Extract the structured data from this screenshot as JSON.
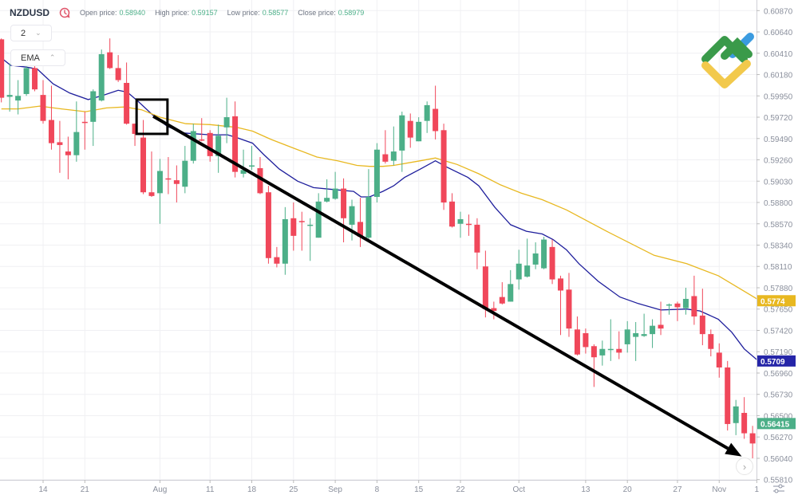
{
  "header": {
    "symbol": "NZDUSD",
    "open_label": "Open price:",
    "open_value": "0.58940",
    "high_label": "High price:",
    "high_value": "0.59157",
    "low_label": "Low price:",
    "low_value": "0.58577",
    "close_label": "Close price:",
    "close_value": "0.58979",
    "clock_icon": "history-clock-icon"
  },
  "controls": {
    "interval_value": "2",
    "indicator_label": "EMA"
  },
  "colors": {
    "up": "#4caf88",
    "down": "#f0475a",
    "ema_fast": "#1e1e9c",
    "ema_slow": "#e8b820",
    "grid": "#f0f0f3",
    "annotation": "#000000"
  },
  "chart_data": {
    "type": "candlestick",
    "title": "NZDUSD",
    "grid": true,
    "ylim": [
      0.5581,
      0.6087
    ],
    "y_ticks": [
      "0.60870",
      "0.60640",
      "0.60410",
      "0.60180",
      "0.59950",
      "0.59720",
      "0.59490",
      "0.59260",
      "0.59030",
      "0.58800",
      "0.58570",
      "0.58340",
      "0.58110",
      "0.57880",
      "0.57650",
      "0.57420",
      "0.57190",
      "0.56960",
      "0.56730",
      "0.56500",
      "0.56270",
      "0.56040",
      "0.55810"
    ],
    "x_ticks": [
      {
        "label": "14",
        "index": 5
      },
      {
        "label": "21",
        "index": 10
      },
      {
        "label": "Aug",
        "index": 19
      },
      {
        "label": "11",
        "index": 25
      },
      {
        "label": "18",
        "index": 30
      },
      {
        "label": "25",
        "index": 35
      },
      {
        "label": "Sep",
        "index": 40
      },
      {
        "label": "8",
        "index": 45
      },
      {
        "label": "15",
        "index": 50
      },
      {
        "label": "22",
        "index": 55
      },
      {
        "label": "Oct",
        "index": 62
      },
      {
        "label": "13",
        "index": 70
      },
      {
        "label": "20",
        "index": 75
      },
      {
        "label": "27",
        "index": 81
      },
      {
        "label": "Nov",
        "index": 86
      },
      {
        "label": "1",
        "index": 90.5
      }
    ],
    "candles_ohlc": [
      [
        0.6056,
        0.6057,
        0.5988,
        0.5993
      ],
      [
        0.5994,
        0.603,
        0.5978,
        0.5996
      ],
      [
        0.599,
        0.6012,
        0.5975,
        0.5995
      ],
      [
        0.5997,
        0.6027,
        0.5995,
        0.6025
      ],
      [
        0.6025,
        0.6027,
        0.6,
        0.6002
      ],
      [
        0.5996,
        0.6012,
        0.5965,
        0.5968
      ],
      [
        0.5969,
        0.6006,
        0.5937,
        0.5944
      ],
      [
        0.5945,
        0.5968,
        0.5912,
        0.5942
      ],
      [
        0.5935,
        0.5951,
        0.5905,
        0.5931
      ],
      [
        0.5931,
        0.5989,
        0.5924,
        0.5956
      ],
      [
        0.5967,
        0.5978,
        0.5937,
        0.5966
      ],
      [
        0.5967,
        0.6002,
        0.5941,
        0.6
      ],
      [
        0.599,
        0.6045,
        0.5989,
        0.604
      ],
      [
        0.6042,
        0.6057,
        0.6024,
        0.6025
      ],
      [
        0.6025,
        0.6039,
        0.601,
        0.6012
      ],
      [
        0.6009,
        0.6031,
        0.5964,
        0.5965
      ],
      [
        0.5965,
        0.5965,
        0.5941,
        0.5954
      ],
      [
        0.595,
        0.5969,
        0.5889,
        0.5891
      ],
      [
        0.5891,
        0.5935,
        0.5886,
        0.5887
      ],
      [
        0.589,
        0.5927,
        0.5857,
        0.5914
      ],
      [
        0.5906,
        0.5929,
        0.5889,
        0.5905
      ],
      [
        0.5904,
        0.592,
        0.588,
        0.59
      ],
      [
        0.5897,
        0.5941,
        0.589,
        0.5925
      ],
      [
        0.5925,
        0.5965,
        0.5922,
        0.5957
      ],
      [
        0.5948,
        0.5971,
        0.5946,
        0.5947
      ],
      [
        0.5955,
        0.5958,
        0.5924,
        0.593
      ],
      [
        0.593,
        0.5964,
        0.5912,
        0.5952
      ],
      [
        0.5961,
        0.5993,
        0.5944,
        0.5972
      ],
      [
        0.5973,
        0.5989,
        0.5907,
        0.5913
      ],
      [
        0.5911,
        0.5937,
        0.5907,
        0.5915
      ],
      [
        0.5919,
        0.5941,
        0.5915,
        0.592
      ],
      [
        0.5917,
        0.5929,
        0.5889,
        0.589
      ],
      [
        0.5891,
        0.5898,
        0.5814,
        0.582
      ],
      [
        0.5821,
        0.5832,
        0.581,
        0.5814
      ],
      [
        0.5814,
        0.5875,
        0.5802,
        0.5862
      ],
      [
        0.5863,
        0.588,
        0.5828,
        0.5844
      ],
      [
        0.586,
        0.587,
        0.5828,
        0.5859
      ],
      [
        0.5855,
        0.5863,
        0.5817,
        0.5856
      ],
      [
        0.5842,
        0.589,
        0.5842,
        0.5881
      ],
      [
        0.5881,
        0.5905,
        0.588,
        0.5885
      ],
      [
        0.5884,
        0.5913,
        0.5883,
        0.5895
      ],
      [
        0.5895,
        0.5906,
        0.5837,
        0.5863
      ],
      [
        0.5856,
        0.5883,
        0.5839,
        0.5876
      ],
      [
        0.5859,
        0.5885,
        0.5832,
        0.5843
      ],
      [
        0.5842,
        0.5916,
        0.584,
        0.5886
      ],
      [
        0.5886,
        0.5944,
        0.588,
        0.5937
      ],
      [
        0.5932,
        0.5958,
        0.5922,
        0.5924
      ],
      [
        0.5925,
        0.5962,
        0.592,
        0.5935
      ],
      [
        0.5936,
        0.5978,
        0.5913,
        0.5974
      ],
      [
        0.5968,
        0.5976,
        0.5939,
        0.595
      ],
      [
        0.5946,
        0.5972,
        0.5946,
        0.5967
      ],
      [
        0.5968,
        0.5989,
        0.5955,
        0.5985
      ],
      [
        0.5981,
        0.6006,
        0.5948,
        0.5957
      ],
      [
        0.5958,
        0.5965,
        0.5872,
        0.588
      ],
      [
        0.5881,
        0.589,
        0.5853,
        0.5854
      ],
      [
        0.5857,
        0.587,
        0.5842,
        0.5862
      ],
      [
        0.5857,
        0.5867,
        0.5844,
        0.5856
      ],
      [
        0.5856,
        0.5863,
        0.5808,
        0.5826
      ],
      [
        0.5811,
        0.5828,
        0.5756,
        0.5765
      ],
      [
        0.5766,
        0.5773,
        0.5754,
        0.5763
      ],
      [
        0.5778,
        0.5794,
        0.577,
        0.5771
      ],
      [
        0.5773,
        0.5807,
        0.5773,
        0.5792
      ],
      [
        0.5797,
        0.5829,
        0.5786,
        0.5814
      ],
      [
        0.58,
        0.5841,
        0.5799,
        0.5812
      ],
      [
        0.5813,
        0.5837,
        0.5808,
        0.5825
      ],
      [
        0.5809,
        0.5843,
        0.5808,
        0.584
      ],
      [
        0.5832,
        0.584,
        0.5792,
        0.5797
      ],
      [
        0.5798,
        0.5801,
        0.5737,
        0.5785
      ],
      [
        0.5786,
        0.5804,
        0.5735,
        0.5744
      ],
      [
        0.5743,
        0.5757,
        0.5715,
        0.5716
      ],
      [
        0.5739,
        0.5744,
        0.5717,
        0.5724
      ],
      [
        0.5725,
        0.5727,
        0.5681,
        0.5713
      ],
      [
        0.5715,
        0.5731,
        0.5704,
        0.5722
      ],
      [
        0.5721,
        0.5754,
        0.5709,
        0.5722
      ],
      [
        0.5722,
        0.5741,
        0.5711,
        0.5718
      ],
      [
        0.5727,
        0.5752,
        0.5718,
        0.5743
      ],
      [
        0.5735,
        0.5751,
        0.5709,
        0.5739
      ],
      [
        0.5736,
        0.576,
        0.5735,
        0.5738
      ],
      [
        0.5738,
        0.5754,
        0.5723,
        0.5747
      ],
      [
        0.5748,
        0.5773,
        0.5737,
        0.5744
      ],
      [
        0.5769,
        0.5771,
        0.5759,
        0.577
      ],
      [
        0.5771,
        0.5773,
        0.5752,
        0.5767
      ],
      [
        0.5766,
        0.5788,
        0.5759,
        0.5776
      ],
      [
        0.5779,
        0.5801,
        0.5748,
        0.5757
      ],
      [
        0.5758,
        0.5787,
        0.5726,
        0.5738
      ],
      [
        0.5738,
        0.5743,
        0.5714,
        0.5722
      ],
      [
        0.5718,
        0.5728,
        0.5691,
        0.5702
      ],
      [
        0.5702,
        0.5709,
        0.5634,
        0.5641
      ],
      [
        0.5642,
        0.5667,
        0.5629,
        0.566
      ],
      [
        0.5653,
        0.567,
        0.5625,
        0.5631
      ],
      [
        0.5631,
        0.5639,
        0.5604,
        0.562
      ]
    ],
    "series": [
      {
        "kind": "ema-fast",
        "points": [
          [
            0,
            0.6036
          ],
          [
            1.1,
            0.6028
          ],
          [
            3.0,
            0.6026
          ],
          [
            4.3,
            0.6024
          ],
          [
            6.2,
            0.6008
          ],
          [
            8.2,
            0.5998
          ],
          [
            10.4,
            0.5991
          ],
          [
            12.0,
            0.5995
          ],
          [
            14.0,
            0.6001
          ],
          [
            15.1,
            0.5999
          ],
          [
            16.4,
            0.5989
          ],
          [
            18.3,
            0.5973
          ],
          [
            19.9,
            0.5962
          ],
          [
            21.8,
            0.5955
          ],
          [
            25.0,
            0.5953
          ],
          [
            27.1,
            0.5953
          ],
          [
            28.2,
            0.595
          ],
          [
            30.1,
            0.5944
          ],
          [
            31.4,
            0.5932
          ],
          [
            33.3,
            0.5916
          ],
          [
            35.5,
            0.5903
          ],
          [
            37.4,
            0.5896
          ],
          [
            39.7,
            0.5894
          ],
          [
            42.2,
            0.5892
          ],
          [
            43.1,
            0.5886
          ],
          [
            44.1,
            0.5886
          ],
          [
            45.7,
            0.5892
          ],
          [
            47.0,
            0.5898
          ],
          [
            48.3,
            0.5907
          ],
          [
            50.2,
            0.5916
          ],
          [
            52.0,
            0.5925
          ],
          [
            53.4,
            0.5918
          ],
          [
            55.9,
            0.5907
          ],
          [
            57.2,
            0.5898
          ],
          [
            59.1,
            0.5875
          ],
          [
            61.0,
            0.5856
          ],
          [
            62.9,
            0.5849
          ],
          [
            64.8,
            0.5846
          ],
          [
            66.1,
            0.584
          ],
          [
            67.7,
            0.5829
          ],
          [
            69.2,
            0.5814
          ],
          [
            71.5,
            0.5795
          ],
          [
            74.1,
            0.5778
          ],
          [
            76.3,
            0.5771
          ],
          [
            79.0,
            0.5764
          ],
          [
            82.1,
            0.5765
          ],
          [
            83.7,
            0.5763
          ],
          [
            85.9,
            0.5754
          ],
          [
            87.5,
            0.574
          ],
          [
            89.0,
            0.5722
          ],
          [
            90.7,
            0.5709
          ]
        ]
      },
      {
        "kind": "ema-slow",
        "points": [
          [
            0,
            0.5981
          ],
          [
            2.0,
            0.5981
          ],
          [
            4.6,
            0.5984
          ],
          [
            7.2,
            0.5981
          ],
          [
            10.1,
            0.5978
          ],
          [
            12.6,
            0.5982
          ],
          [
            14.8,
            0.5983
          ],
          [
            16.8,
            0.598
          ],
          [
            19.0,
            0.5972
          ],
          [
            22.1,
            0.5965
          ],
          [
            25.0,
            0.5964
          ],
          [
            28.2,
            0.5961
          ],
          [
            30.1,
            0.5957
          ],
          [
            32.3,
            0.5948
          ],
          [
            35.2,
            0.5938
          ],
          [
            37.8,
            0.5929
          ],
          [
            40.3,
            0.5925
          ],
          [
            42.6,
            0.592
          ],
          [
            44.1,
            0.5919
          ],
          [
            45.7,
            0.5919
          ],
          [
            47.0,
            0.592
          ],
          [
            50.2,
            0.5925
          ],
          [
            52.0,
            0.5928
          ],
          [
            54.6,
            0.5921
          ],
          [
            57.2,
            0.5911
          ],
          [
            59.8,
            0.5899
          ],
          [
            62.3,
            0.589
          ],
          [
            64.8,
            0.5883
          ],
          [
            67.7,
            0.5872
          ],
          [
            72.5,
            0.5849
          ],
          [
            78.2,
            0.5823
          ],
          [
            82.1,
            0.5814
          ],
          [
            85.9,
            0.5801
          ],
          [
            90.7,
            0.5775
          ]
        ]
      }
    ],
    "price_labels": [
      {
        "text": "0.5774",
        "value": 0.5774,
        "color": "#e8b820"
      },
      {
        "text": "0.5709",
        "value": 0.5709,
        "color": "#2525a8"
      },
      {
        "text": "0.56415",
        "value": 0.56415,
        "color": "#4caf88"
      }
    ],
    "annotations": {
      "rectangle": {
        "index_from": 16.2,
        "index_to": 19.9,
        "price_top": 0.5991,
        "price_bottom": 0.5954
      },
      "arrow": {
        "from": [
          18.2,
          0.5973
        ],
        "to": [
          88.7,
          0.5606
        ]
      }
    }
  }
}
